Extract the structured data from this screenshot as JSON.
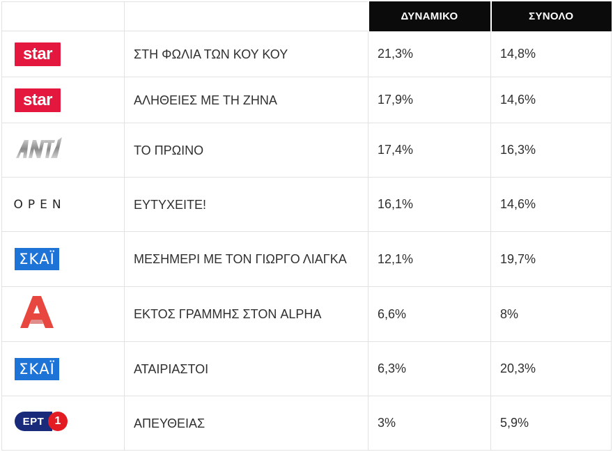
{
  "table": {
    "headers": {
      "dynamic": "ΔΥΝΑΜΙΚΟ",
      "total": "ΣΥΝΟΛΟ"
    },
    "rows": [
      {
        "channel": "star",
        "logo_text": "star",
        "show": "ΣΤΗ ΦΩΛΙΑ ΤΩΝ ΚΟΥ ΚΟΥ",
        "dynamic": "21,3%",
        "total": "14,8%"
      },
      {
        "channel": "star",
        "logo_text": "star",
        "show": "ΑΛΗΘΕΙΕΣ ΜΕ ΤΗ ΖΗΝΑ",
        "dynamic": "17,9%",
        "total": "14,6%"
      },
      {
        "channel": "ant1",
        "logo_text": "ANT1",
        "show": "ΤΟ ΠΡΩΙΝΟ",
        "dynamic": "17,4%",
        "total": "16,3%"
      },
      {
        "channel": "open",
        "logo_text": "OPEN",
        "show": "ΕΥΤΥΧΕΙΤΕ!",
        "dynamic": "16,1%",
        "total": "14,6%"
      },
      {
        "channel": "skai",
        "logo_text": "ΣΚΑΪ",
        "show": "ΜΕΣΗΜΕΡΙ ΜΕ ΤΟΝ ΓΙΩΡΓΟ ΛΙΑΓΚΑ",
        "dynamic": "12,1%",
        "total": "19,7%"
      },
      {
        "channel": "alpha",
        "logo_text": "A",
        "show": "ΕΚΤΟΣ ΓΡΑΜΜΗΣ ΣΤΟΝ ALPHA",
        "dynamic": "6,6%",
        "total": "8%"
      },
      {
        "channel": "skai",
        "logo_text": "ΣΚΑΪ",
        "show": "ΑΤΑΙΡΙΑΣΤΟΙ",
        "dynamic": "6,3%",
        "total": "20,3%"
      },
      {
        "channel": "ert1",
        "logo_text": "ΕΡΤ",
        "logo_num": "1",
        "show": "ΑΠΕΥΘΕΙΑΣ",
        "dynamic": "3%",
        "total": "5,9%"
      }
    ]
  },
  "colors": {
    "header_bg": "#0b0b0b",
    "star_red": "#e4173e",
    "skai_blue": "#1e73d6",
    "alpha_red": "#e8473f",
    "ert_navy": "#1a2a7a",
    "ert_red": "#e31b23"
  },
  "icons": {
    "star": "star-logo-icon",
    "ant1": "ant1-logo-icon",
    "open": "open-logo-icon",
    "skai": "skai-logo-icon",
    "alpha": "alpha-logo-icon",
    "ert1": "ert1-logo-icon"
  }
}
